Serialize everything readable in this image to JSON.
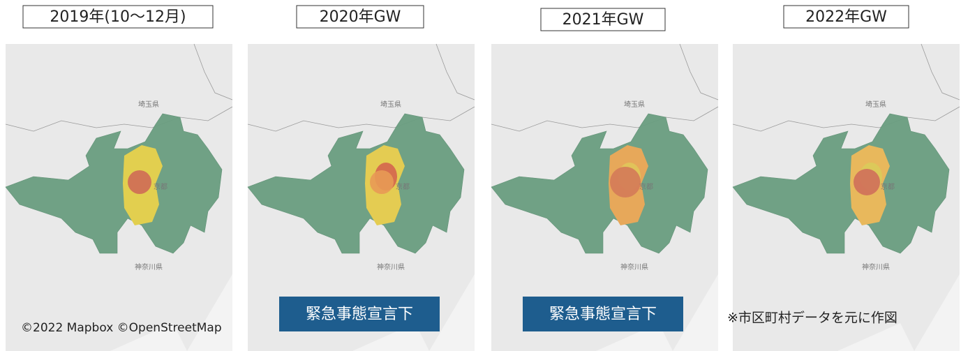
{
  "panels": [
    {
      "title": "2019年(10～12月)",
      "labels": {
        "saitama": "埼玉県",
        "tokyo": "京都",
        "kanagawa": "神奈川県"
      }
    },
    {
      "title": "2020年GW",
      "labels": {
        "saitama": "埼玉県",
        "tokyo": "京都",
        "kanagawa": "神奈川県"
      },
      "badge": "緊急事態宣言下"
    },
    {
      "title": "2021年GW",
      "labels": {
        "saitama": "埼玉県",
        "tokyo": "京都",
        "kanagawa": "神奈川県"
      },
      "badge": "緊急事態宣言下"
    },
    {
      "title": "2022年GW",
      "labels": {
        "saitama": "埼玉県",
        "tokyo": "京都",
        "kanagawa": "神奈川県"
      }
    }
  ],
  "attribution": "©2022 Mapbox ©OpenStreetMap",
  "note": "※市区町村データを元に作図"
}
